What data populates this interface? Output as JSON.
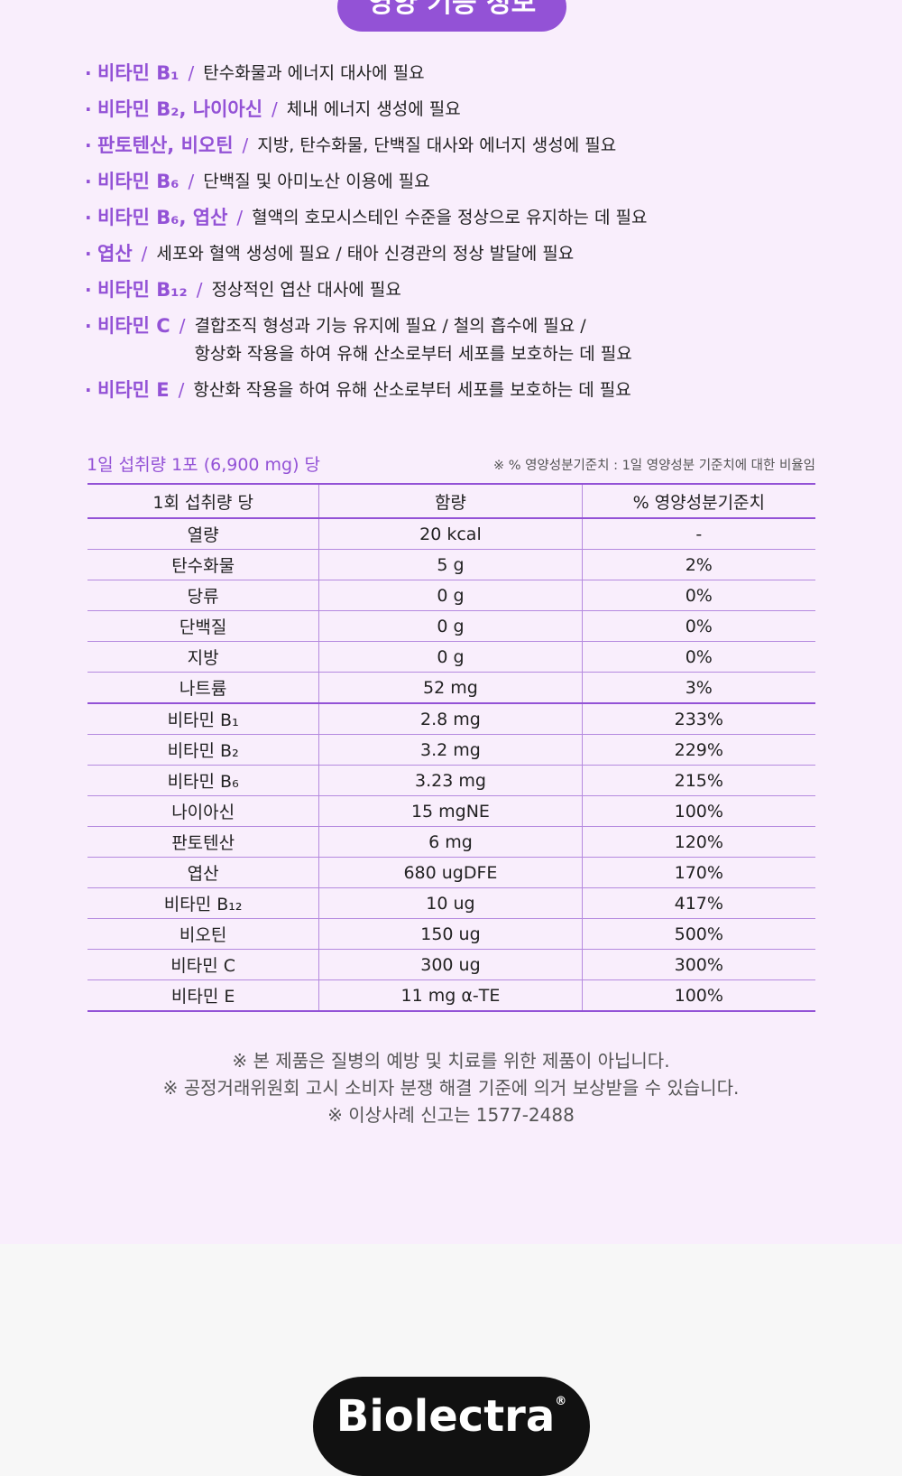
{
  "section_heading": "영양 기능 정보",
  "functions": [
    {
      "name": "비타민 B₁",
      "desc": [
        "탄수화물과 에너지 대사에 필요"
      ]
    },
    {
      "name": "비타민 B₂, 나이아신",
      "desc": [
        "체내 에너지 생성에 필요"
      ]
    },
    {
      "name": "판토텐산, 비오틴",
      "desc": [
        "지방, 탄수화물, 단백질 대사와 에너지 생성에 필요"
      ]
    },
    {
      "name": "비타민 B₆",
      "desc": [
        "단백질 및 아미노산 이용에 필요"
      ]
    },
    {
      "name": "비타민 B₆, 엽산",
      "desc": [
        "혈액의 호모시스테인 수준을 정상으로 유지하는 데 필요"
      ]
    },
    {
      "name": "엽산",
      "desc": [
        "세포와 혈액 생성에 필요 / 태아 신경관의 정상 발달에 필요"
      ]
    },
    {
      "name": "비타민 B₁₂",
      "desc": [
        "정상적인 엽산 대사에 필요"
      ]
    },
    {
      "name": "비타민 C",
      "desc": [
        "결합조직 형성과 기능 유지에 필요 / 철의 흡수에 필요 /",
        "항상화 작용을 하여 유해 산소로부터 세포를 보호하는 데 필요"
      ]
    },
    {
      "name": "비타민 E",
      "desc": [
        "항산화 작용을 하여 유해 산소로부터 세포를 보호하는 데 필요"
      ]
    }
  ],
  "bullet": "·",
  "separator": "/",
  "table": {
    "caption": "1일 섭취량 1포 (6,900 mg) 당",
    "note": "※ % 영양성분기준치 : 1일 영양성분 기준치에 대한 비율임",
    "headers": [
      "1회 섭취량 당",
      "함량",
      "% 영양성분기준치"
    ],
    "rows": [
      [
        "열량",
        "20 kcal",
        "-"
      ],
      [
        "탄수화물",
        "5 g",
        "2%"
      ],
      [
        "당류",
        "0 g",
        "0%"
      ],
      [
        "단백질",
        "0 g",
        "0%"
      ],
      [
        "지방",
        "0 g",
        "0%"
      ],
      [
        "나트륨",
        "52 mg",
        "3%"
      ],
      [
        "비타민 B₁",
        "2.8 mg",
        "233%"
      ],
      [
        "비타민 B₂",
        "3.2 mg",
        "229%"
      ],
      [
        "비타민 B₆",
        "3.23 mg",
        "215%"
      ],
      [
        "나이아신",
        "15 mgNE",
        "100%"
      ],
      [
        "판토텐산",
        "6 mg",
        "120%"
      ],
      [
        "엽산",
        "680 ugDFE",
        "170%"
      ],
      [
        "비타민 B₁₂",
        "10 ug",
        "417%"
      ],
      [
        "비오틴",
        "150 ug",
        "500%"
      ],
      [
        "비타민 C",
        "300 ug",
        "300%"
      ],
      [
        "비타민 E",
        "11 mg α-TE",
        "100%"
      ]
    ]
  },
  "disclaimers": [
    "※ 본 제품은 질병의 예방 및 치료를 위한 제품이 아닙니다.",
    "※ 공정거래위원회 고시 소비자 분쟁 해결 기준에 의거 보상받을 수 있습니다.",
    "※ 이상사례 신고는 1577-2488"
  ],
  "brand": {
    "name": "Biolectra",
    "reg_mark": "®"
  },
  "colors": {
    "accent": "#9352d6",
    "panel_bg": "#f9eefc",
    "page_bg": "#f7f7f7",
    "logo_bg": "#111111"
  }
}
